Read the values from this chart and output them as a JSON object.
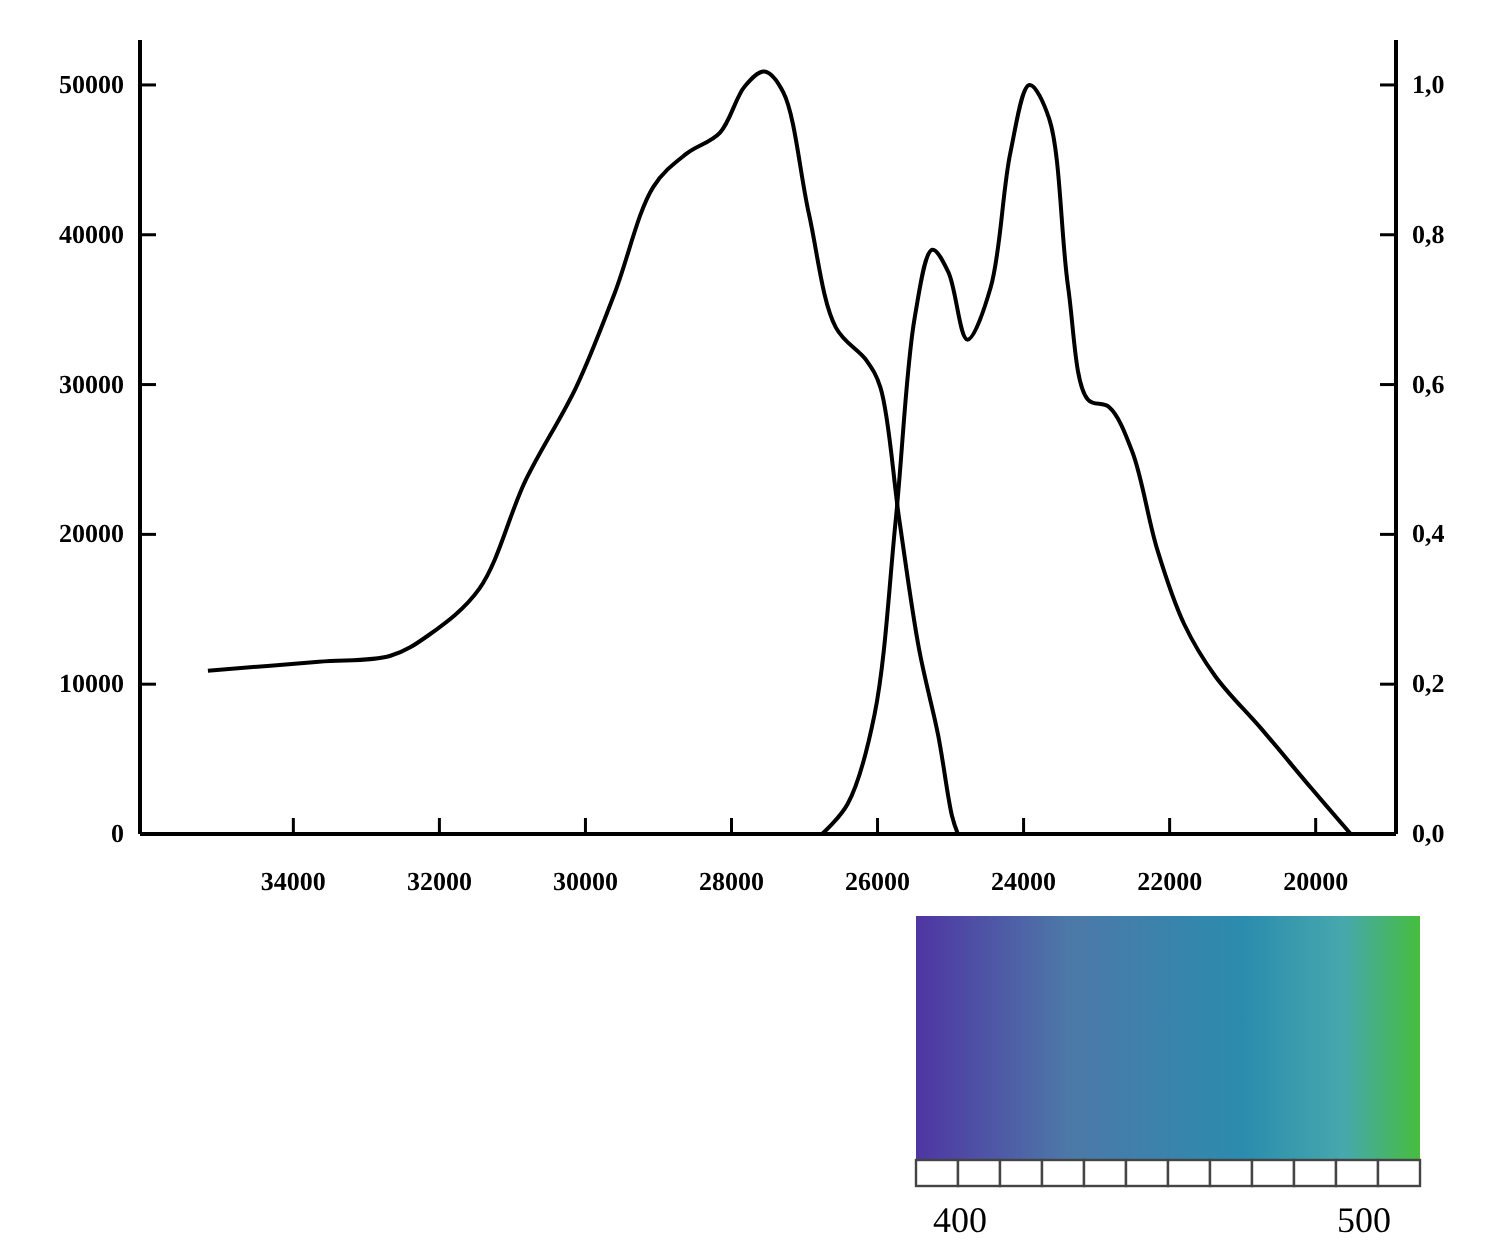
{
  "chart_data": {
    "type": "line",
    "xlim": [
      36100,
      18900
    ],
    "xticks": [
      34000,
      32000,
      30000,
      28000,
      26000,
      24000,
      22000,
      20000
    ],
    "ylim": [
      0,
      53000
    ],
    "yticks": [
      0,
      10000,
      20000,
      30000,
      40000,
      50000
    ],
    "y2lim": [
      0,
      1.06
    ],
    "y2ticks": [
      {
        "value": 0,
        "label": "0,0"
      },
      {
        "value": 0.2,
        "label": "0,2"
      },
      {
        "value": 0.4,
        "label": "0,4"
      },
      {
        "value": 0.6,
        "label": "0,6"
      },
      {
        "value": 0.8,
        "label": "0,8"
      },
      {
        "value": 1,
        "label": "1,0"
      }
    ],
    "grid": false,
    "marker": "none",
    "line_style": "solid",
    "series": [
      {
        "color": "#000000",
        "x": [
          35170,
          33650,
          32670,
          32140,
          31450,
          30820,
          30130,
          29600,
          29070,
          28620,
          28160,
          27820,
          27550,
          27290,
          26940,
          26570,
          26150,
          25960,
          25700,
          25430,
          25170,
          24980,
          24900
        ],
        "values": [
          10900,
          11500,
          11900,
          13300,
          16400,
          23600,
          29800,
          36100,
          43200,
          45400,
          46800,
          49900,
          50900,
          49500,
          41400,
          33800,
          31600,
          29800,
          20900,
          12300,
          6600,
          1200,
          0
        ]
      },
      {
        "color": "#000000",
        "axis": "y2",
        "x": [
          26760,
          26410,
          26040,
          25750,
          25490,
          25250,
          25030,
          24770,
          24450,
          24180,
          23920,
          23650,
          23390,
          23120,
          22830,
          22510,
          22170,
          21800,
          21370,
          20740,
          20050,
          19520
        ],
        "values": [
          0,
          0.04,
          0.16,
          0.42,
          0.69,
          0.78,
          0.75,
          0.66,
          0.73,
          0.91,
          1.0,
          0.955,
          0.73,
          0.58,
          0.57,
          0.51,
          0.38,
          0.28,
          0.21,
          0.14,
          0.06,
          0
        ]
      }
    ],
    "annotations": [
      "400",
      "500"
    ]
  }
}
